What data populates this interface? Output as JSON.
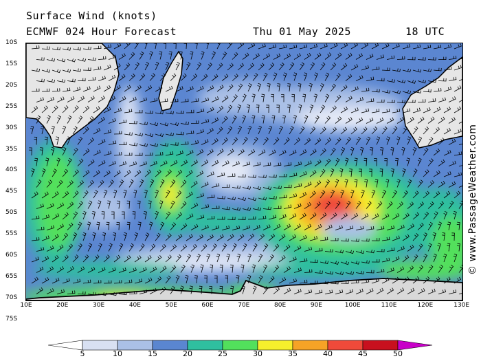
{
  "header": {
    "title": "Surface Wind (knots)",
    "model_line": "ECMWF 024 Hour Forecast",
    "date": "Thu 01 May 2025",
    "time": "18 UTC"
  },
  "copyright": "© www.PassageWeather.com",
  "map": {
    "lat_labels": [
      "10S",
      "15S",
      "20S",
      "25S",
      "30S",
      "35S",
      "40S",
      "45S",
      "50S",
      "55S",
      "60S",
      "65S",
      "70S",
      "75S"
    ],
    "lon_labels": [
      "10E",
      "20E",
      "30E",
      "40E",
      "50E",
      "60E",
      "70E",
      "80E",
      "90E",
      "100E",
      "110E",
      "120E",
      "130E"
    ],
    "land_color": "#e6e6e6",
    "ocean_base_color": "#5b86d1"
  },
  "scale": {
    "labels": [
      "5",
      "10",
      "15",
      "20",
      "25",
      "30",
      "35",
      "40",
      "45",
      "50"
    ],
    "colors": [
      "#ffffff",
      "#d8e0f2",
      "#aac0e6",
      "#5a86d0",
      "#2fbf9f",
      "#52e05c",
      "#f6ef2c",
      "#f6a326",
      "#ef4a3a",
      "#c8101e",
      "#c800c8"
    ]
  }
}
